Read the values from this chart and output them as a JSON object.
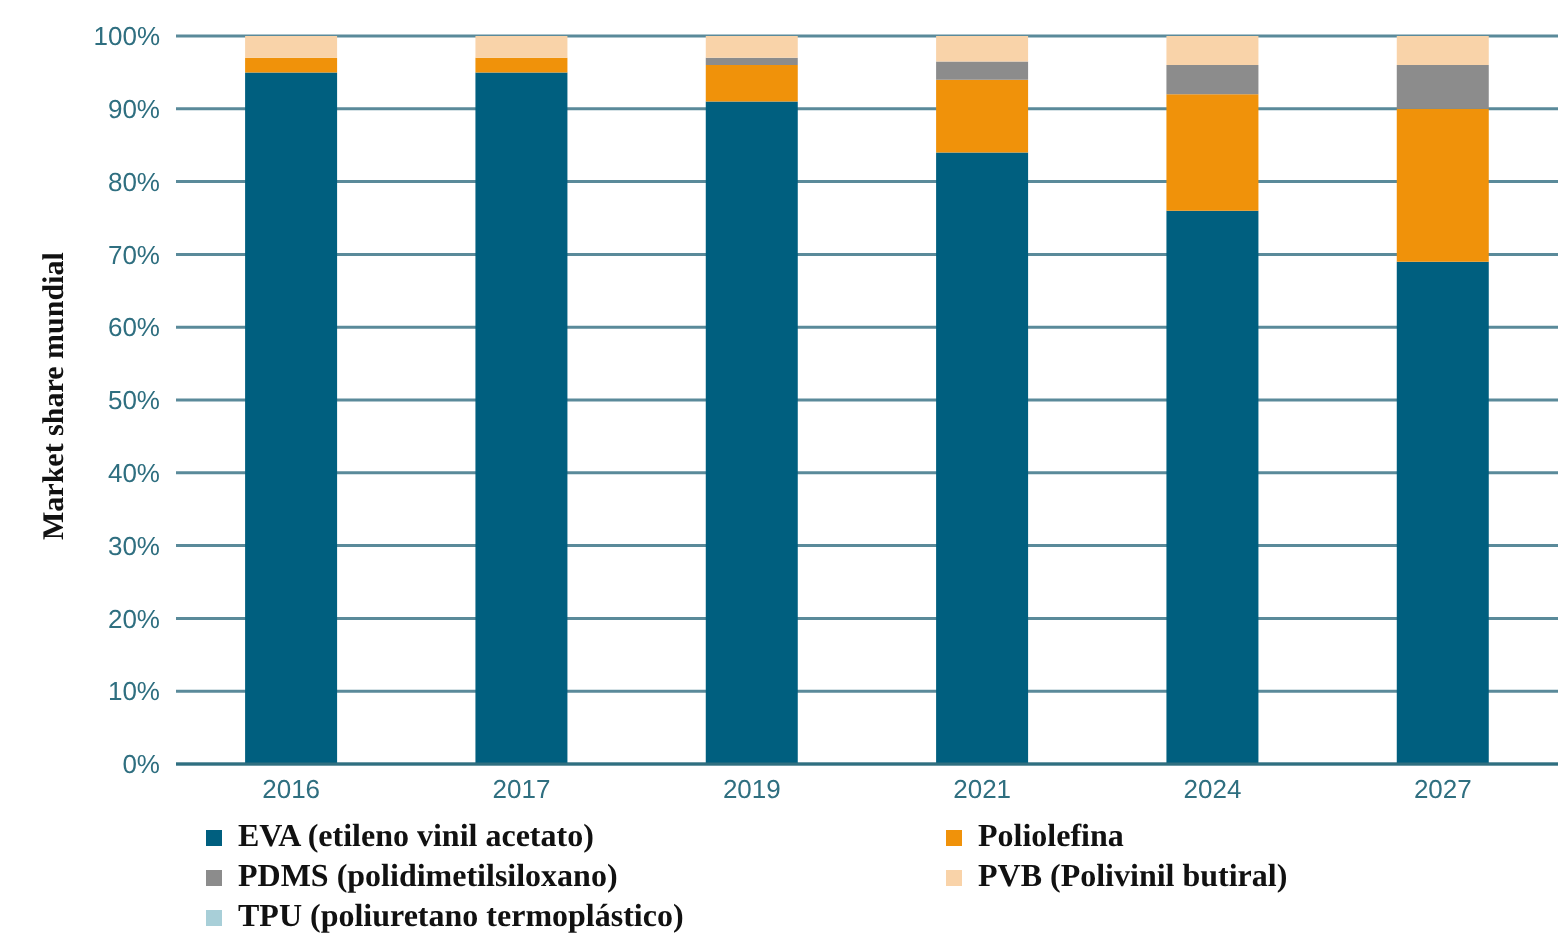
{
  "chart_data": {
    "type": "bar",
    "stacked": true,
    "ylabel": "Market share mundial",
    "categories": [
      "2016",
      "2017",
      "2019",
      "2021",
      "2024",
      "2027"
    ],
    "series": [
      {
        "name": "EVA (etileno vinil acetato)",
        "color": "#005f7f",
        "values": [
          95,
          95,
          91,
          84,
          76,
          69
        ]
      },
      {
        "name": "Poliolefina",
        "color": "#f0920a",
        "values": [
          2,
          2,
          5,
          10,
          16,
          21
        ]
      },
      {
        "name": "PDMS (polidimetilsiloxano)",
        "color": "#8c8c8c",
        "values": [
          0,
          0,
          1,
          2.5,
          4,
          6
        ]
      },
      {
        "name": "PVB (Polivinil butiral)",
        "color": "#f9d3a9",
        "values": [
          3,
          3,
          3,
          3.5,
          4,
          4
        ]
      },
      {
        "name": "TPU (poliuretano termoplástico)",
        "color": "#a8cfd8",
        "values": [
          0,
          0,
          0,
          0,
          0,
          0
        ]
      }
    ],
    "ylim": [
      0,
      100
    ],
    "yticks": [
      {
        "value": 0,
        "label": "0%"
      },
      {
        "value": 10,
        "label": "10%"
      },
      {
        "value": 20,
        "label": "20%"
      },
      {
        "value": 30,
        "label": "30%"
      },
      {
        "value": 40,
        "label": "40%"
      },
      {
        "value": 50,
        "label": "50%"
      },
      {
        "value": 60,
        "label": "60%"
      },
      {
        "value": 70,
        "label": "70%"
      },
      {
        "value": 80,
        "label": "80%"
      },
      {
        "value": 90,
        "label": "90%"
      },
      {
        "value": 100,
        "label": "100%"
      }
    ],
    "grid": "y",
    "legend": "bottom"
  }
}
